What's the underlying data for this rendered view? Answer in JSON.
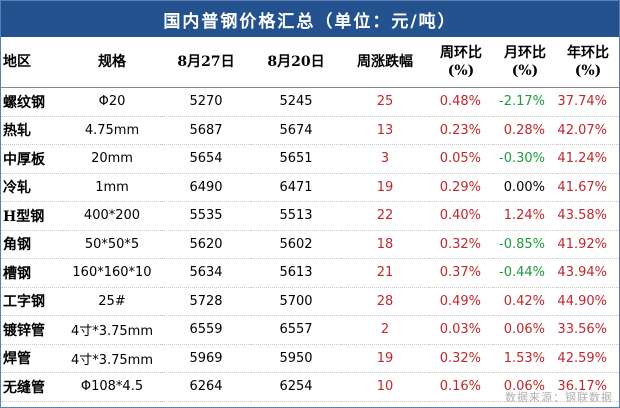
{
  "title": "国内普钢价格汇总（单位：元/吨）",
  "headers": {
    "region": "地区",
    "spec": "规格",
    "d1": "8月27日",
    "d2": "8月20日",
    "weekly": "周涨跌幅",
    "wow": "周环比",
    "wow_unit": "(%)",
    "mom": "月环比",
    "mom_unit": "(%)",
    "yoy": "年环比",
    "yoy_unit": "(%)"
  },
  "rows": [
    {
      "region": "螺纹钢",
      "spec": "Φ20",
      "d1": "5270",
      "d2": "5245",
      "chg": "25",
      "wow": "0.48%",
      "mom": "-2.17%",
      "mom_color": "green",
      "yoy": "37.74%"
    },
    {
      "region": "热轧",
      "spec": "4.75mm",
      "d1": "5687",
      "d2": "5674",
      "chg": "13",
      "wow": "0.23%",
      "mom": "0.28%",
      "mom_color": "red",
      "yoy": "42.07%"
    },
    {
      "region": "中厚板",
      "spec": "20mm",
      "d1": "5654",
      "d2": "5651",
      "chg": "3",
      "wow": "0.05%",
      "mom": "-0.30%",
      "mom_color": "green",
      "yoy": "41.24%"
    },
    {
      "region": "冷轧",
      "spec": "1mm",
      "d1": "6490",
      "d2": "6471",
      "chg": "19",
      "wow": "0.29%",
      "mom": "0.00%",
      "mom_color": "black",
      "yoy": "41.67%"
    },
    {
      "region": "H型钢",
      "spec": "400*200",
      "d1": "5535",
      "d2": "5513",
      "chg": "22",
      "wow": "0.40%",
      "mom": "1.24%",
      "mom_color": "red",
      "yoy": "43.58%"
    },
    {
      "region": "角钢",
      "spec": "50*50*5",
      "d1": "5620",
      "d2": "5602",
      "chg": "18",
      "wow": "0.32%",
      "mom": "-0.85%",
      "mom_color": "green",
      "yoy": "41.92%"
    },
    {
      "region": "槽钢",
      "spec": "160*160*10",
      "d1": "5634",
      "d2": "5613",
      "chg": "21",
      "wow": "0.37%",
      "mom": "-0.44%",
      "mom_color": "green",
      "yoy": "43.94%"
    },
    {
      "region": "工字钢",
      "spec": "25#",
      "d1": "5728",
      "d2": "5700",
      "chg": "28",
      "wow": "0.49%",
      "mom": "0.42%",
      "mom_color": "red",
      "yoy": "44.90%"
    },
    {
      "region": "镀锌管",
      "spec": "4寸*3.75mm",
      "d1": "6559",
      "d2": "6557",
      "chg": "2",
      "wow": "0.03%",
      "mom": "0.06%",
      "mom_color": "red",
      "yoy": "33.56%"
    },
    {
      "region": "焊管",
      "spec": "4寸*3.75mm",
      "d1": "5969",
      "d2": "5950",
      "chg": "19",
      "wow": "0.32%",
      "mom": "1.53%",
      "mom_color": "red",
      "yoy": "42.59%"
    },
    {
      "region": "无缝管",
      "spec": "Φ108*4.5",
      "d1": "6264",
      "d2": "6254",
      "chg": "10",
      "wow": "0.16%",
      "mom": "0.06%",
      "mom_color": "red",
      "yoy": "36.17%"
    }
  ],
  "source": "数据来源：钢联数据",
  "colors": {
    "title_bg": "#24528f",
    "positive": "#c0282d",
    "negative": "#1e9a3c"
  }
}
